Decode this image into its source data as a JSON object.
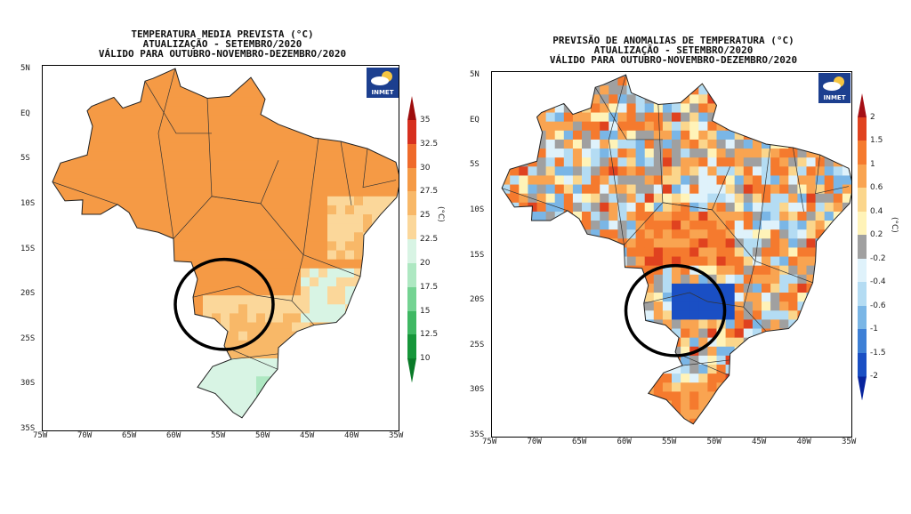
{
  "left_map": {
    "title_lines": [
      "TEMPERATURA MEDIA PREVISTA (°C)",
      "ATUALIZAÇÃO - SETEMBRO/2020",
      "VÁLIDO PARA OUTUBRO-NOVEMBRO-DEZEMBRO/2020"
    ],
    "lat_labels": [
      "5N",
      "EQ",
      "5S",
      "10S",
      "15S",
      "20S",
      "25S",
      "30S",
      "35S"
    ],
    "lon_labels": [
      "75W",
      "70W",
      "65W",
      "60W",
      "55W",
      "50W",
      "45W",
      "40W",
      "35W"
    ],
    "colorbar_labels": [
      "35",
      "32.5",
      "30",
      "27.5",
      "25",
      "22.5",
      "20",
      "17.5",
      "15",
      "12.5",
      "10"
    ],
    "colorbar_unit": "(°C)",
    "logo_text": "INMET",
    "colorbar_colors": [
      "#9e0d0d",
      "#d7301f",
      "#ef6a2a",
      "#f59a45",
      "#f8b868",
      "#fbd79a",
      "#d8f4e4",
      "#aee8c2",
      "#74d392",
      "#3fb863",
      "#16963a",
      "#0a7a28"
    ]
  },
  "right_map": {
    "title_lines": [
      "PREVISÃO DE ANOMALIAS DE TEMPERATURA (°C)",
      "ATUALIZAÇÃO - SETEMBRO/2020",
      "VÁLIDO PARA OUTUBRO-NOVEMBRO-DEZEMBRO/2020"
    ],
    "lat_labels": [
      "5N",
      "EQ",
      "5S",
      "10S",
      "15S",
      "20S",
      "25S",
      "30S",
      "35S"
    ],
    "lon_labels": [
      "75W",
      "70W",
      "65W",
      "60W",
      "55W",
      "50W",
      "45W",
      "40W",
      "35W"
    ],
    "colorbar_labels": [
      "2",
      "1.5",
      "1",
      "0.6",
      "0.4",
      "0.2",
      "-0.2",
      "-0.4",
      "-0.6",
      "-1",
      "-1.5",
      "-2"
    ],
    "colorbar_unit": "(°C)",
    "logo_text": "INMET",
    "colorbar_colors": [
      "#a50f15",
      "#e0421f",
      "#f57a2e",
      "#f9a451",
      "#fbd68c",
      "#fff3b8",
      "#a0a0a0",
      "#dff2fb",
      "#b4dcf3",
      "#7ab6e6",
      "#3e80d6",
      "#1a4fc4",
      "#08249e"
    ]
  }
}
